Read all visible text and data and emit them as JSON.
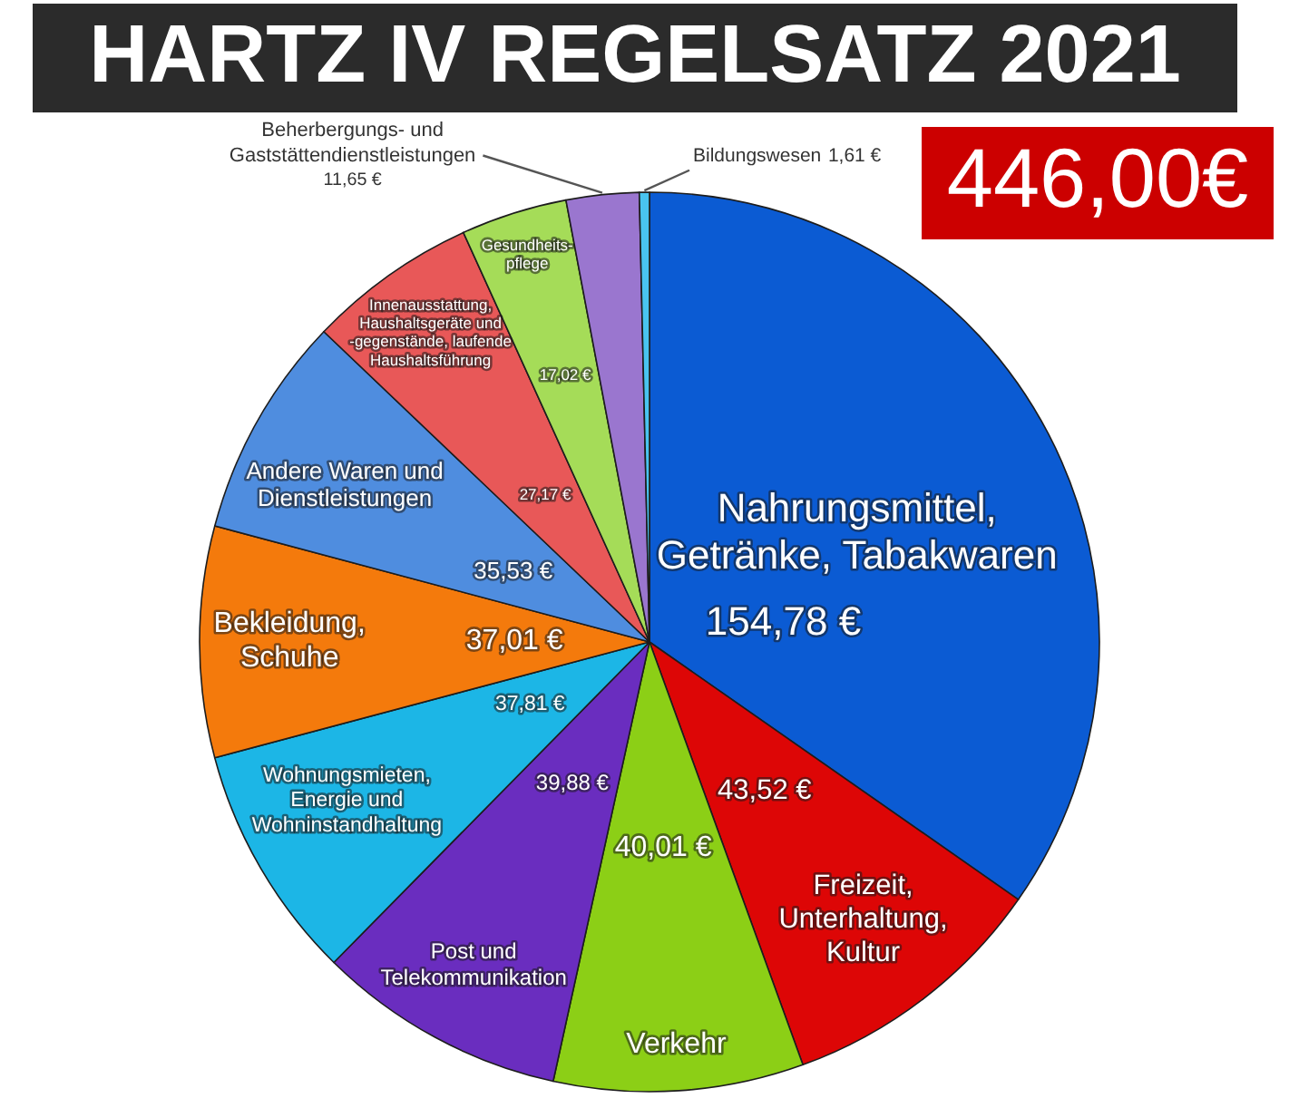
{
  "chart_data": {
    "type": "pie",
    "title": "HARTZ IV REGELSATZ 2021",
    "subtitle": "446,00€",
    "categories": [
      "Nahrungsmittel,\nGetränke, Tabakwaren",
      "Freizeit,\nUnterhaltung,\nKultur",
      "Verkehr",
      "Post und\nTelekommunikation",
      "Wohnungsmieten,\nEnergie und\nWohninstandhaltung",
      "Bekleidung,\nSchuhe",
      "Andere Waren und\nDienstleistungen",
      "Innenausstattung,\nHaushaltsgeräte und\n-gegenstände, laufende\nHaushaltsführung",
      "Gesundheits-\npflege",
      "Beherbergungs- und\nGaststättendienstleistungen",
      "Bildungswesen"
    ],
    "values": [
      154.78,
      43.52,
      40.01,
      39.88,
      37.81,
      37.01,
      35.53,
      27.17,
      17.02,
      11.65,
      1.61
    ],
    "value_labels": [
      "154,78 €",
      "43,52 €",
      "40,01 €",
      "39,88 €",
      "37,81 €",
      "37,01 €",
      "35,53 €",
      "27,17 €",
      "17,02 €",
      "11,65 €",
      "1,61 €"
    ],
    "colors": [
      "#0b5bd3",
      "#dd0606",
      "#8ccf16",
      "#6a2dbf",
      "#1cb6e6",
      "#f47a0c",
      "#4f8ddf",
      "#e85858",
      "#a5dc58",
      "#9a76cf",
      "#49c4f0"
    ]
  }
}
